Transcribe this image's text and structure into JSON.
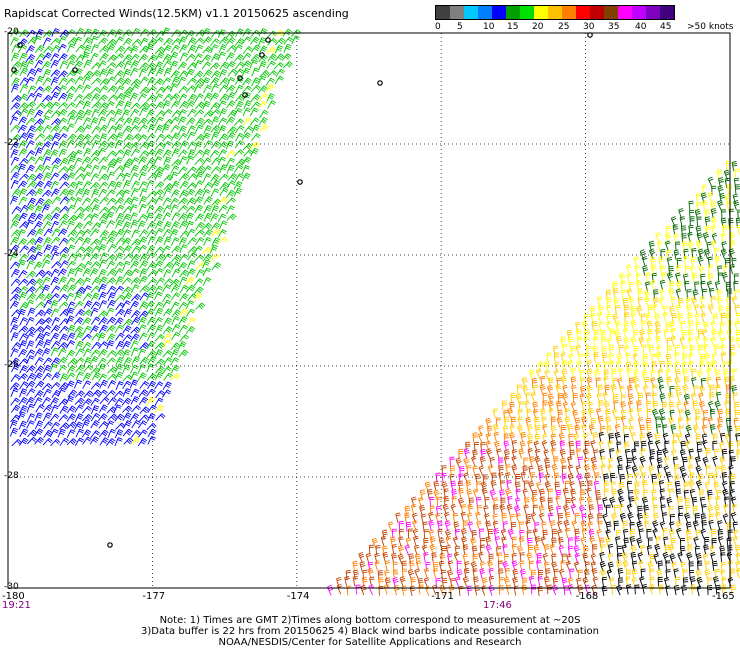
{
  "title": "Rapidscat Corrected Winds(12.5KM) v1.1 20150625 ascending",
  "legend": {
    "colors": [
      "#404040",
      "#808080",
      "#00c8ff",
      "#0080ff",
      "#0000ff",
      "#00a000",
      "#00e000",
      "#ffff00",
      "#ffc000",
      "#ff8000",
      "#ff0000",
      "#c00000",
      "#804000",
      "#ff00ff",
      "#c000ff",
      "#8000c0",
      "#400080"
    ],
    "labels": [
      "0",
      "5",
      "10",
      "15",
      "20",
      "25",
      "30",
      "35",
      "40",
      "45",
      ">50 knots"
    ]
  },
  "map": {
    "lon_range": [
      -180,
      -165
    ],
    "lat_range": [
      -30,
      -20
    ],
    "x_ticks": [
      "-180",
      "-177",
      "-174",
      "-171",
      "-168",
      "-165"
    ],
    "y_ticks": [
      "-20",
      "-22",
      "-24",
      "-26",
      "-28",
      "-30"
    ],
    "grid": true
  },
  "times": {
    "left": "19:21",
    "middle": "17:46"
  },
  "notes": {
    "line1": "Note: 1) Times are GMT 2)Times along bottom correspond to measurement at ~20S",
    "line2": "3)Data buffer is 22 hrs from 20150625 4) Black wind barbs indicate possible contamination",
    "line3": "NOAA/NESDIS/Center for Satellite Applications and Research"
  },
  "swaths": {
    "west_colors": [
      "#00c800",
      "#00c800",
      "#00c800",
      "#0000ff"
    ],
    "east_colors": [
      "#ffff00",
      "#ffd000",
      "#ff8000",
      "#c04000",
      "#ff00ff",
      "#006400",
      "#000000"
    ]
  }
}
